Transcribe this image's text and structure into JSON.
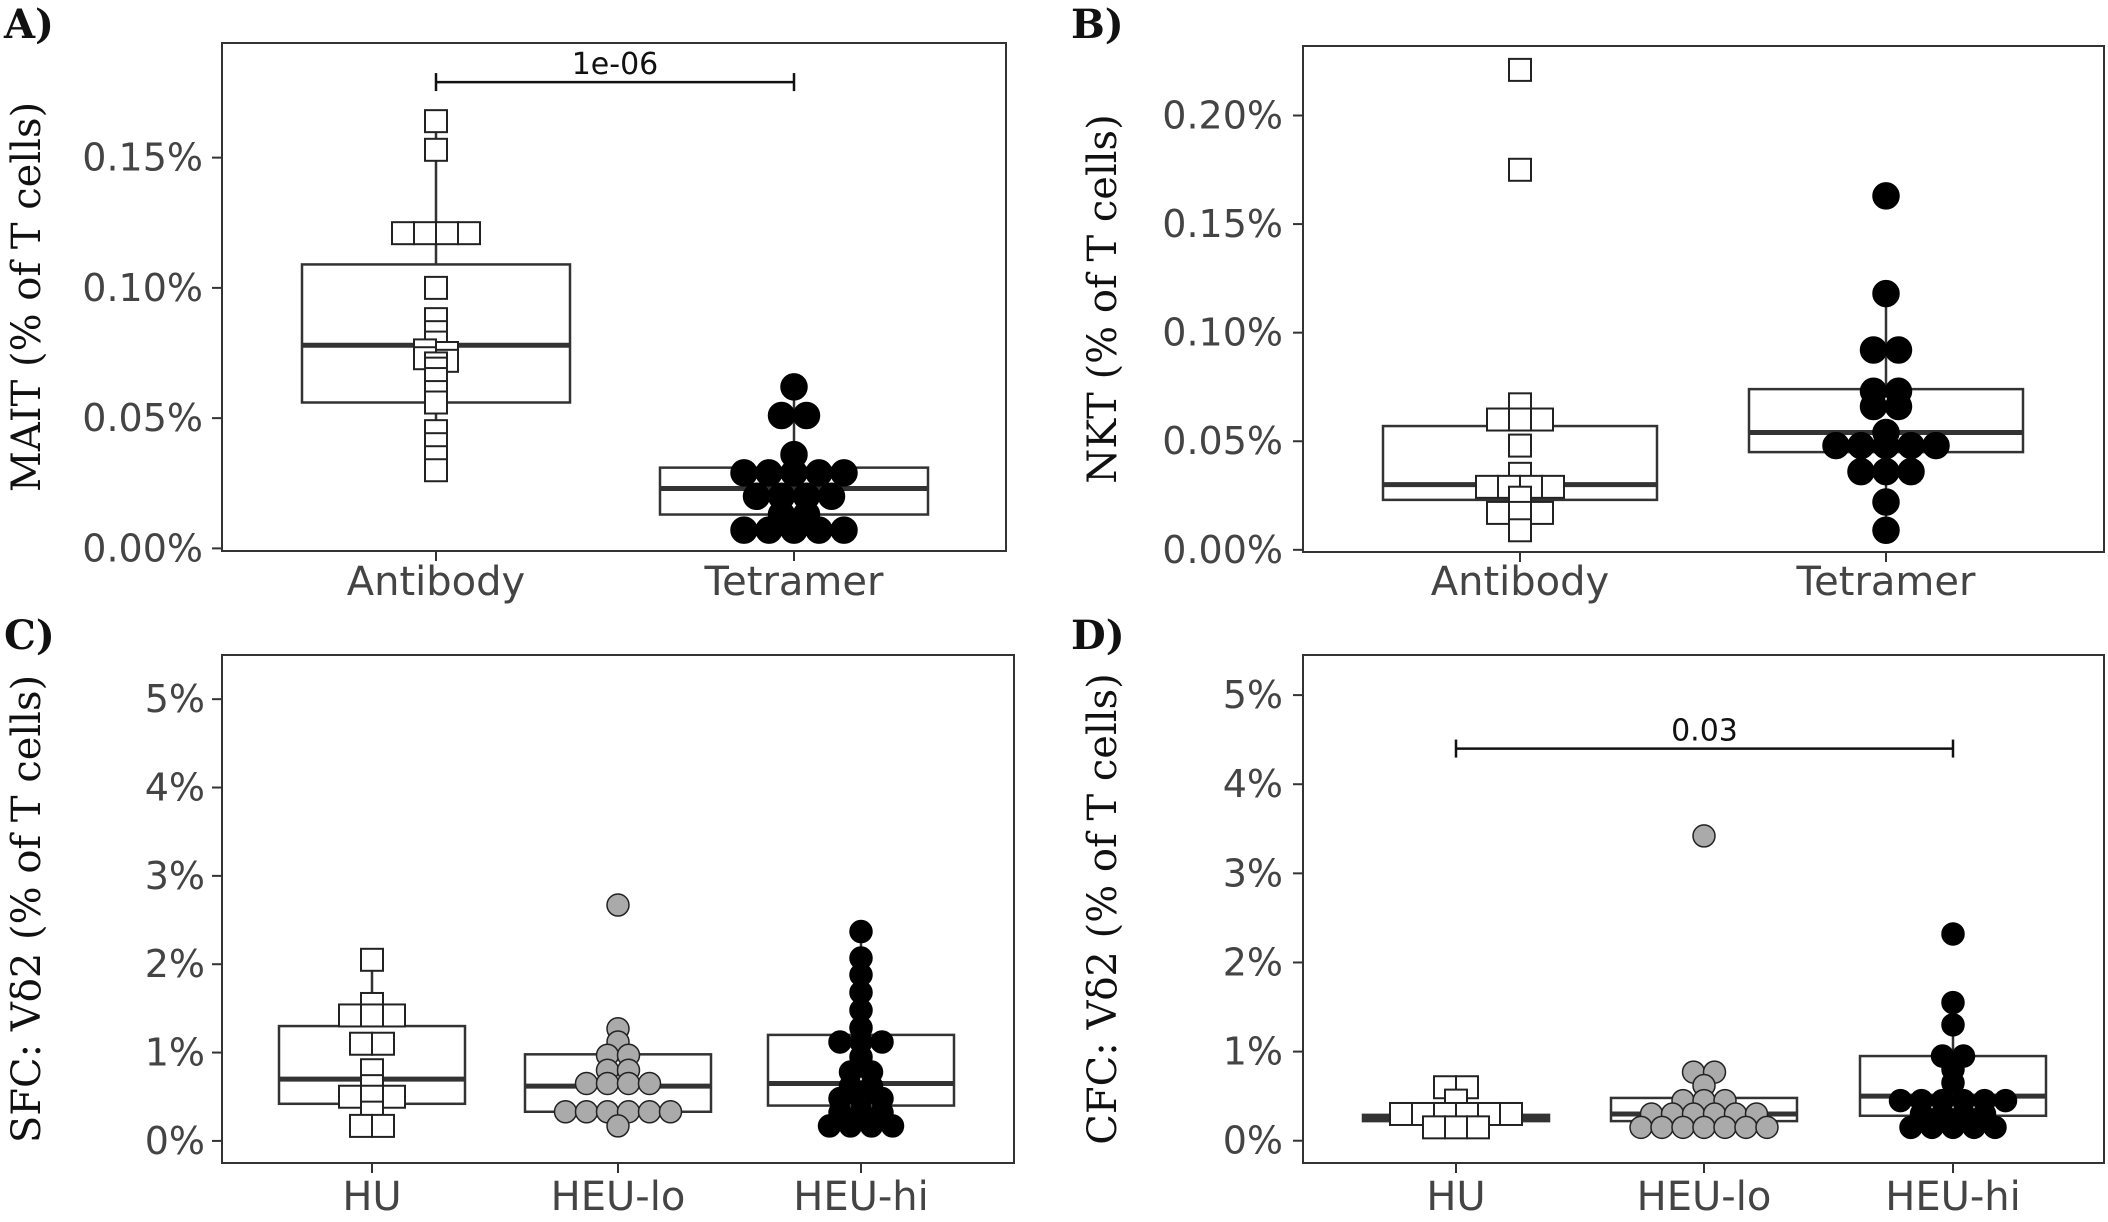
{
  "chart_data": [
    {
      "type": "box",
      "panel": "A)",
      "ylabel": "MAIT (% of T cells)",
      "categories": [
        "Antibody",
        "Tetramer"
      ],
      "yticks": [
        0,
        0.05,
        0.1,
        0.15
      ],
      "ytick_labels": [
        "0.00%",
        "0.05%",
        "0.10%",
        "0.15%"
      ],
      "ylim": [
        -0.001,
        0.194
      ],
      "boxes": [
        {
          "category": "Antibody",
          "q1": 0.056,
          "median": 0.078,
          "q3": 0.109,
          "whisker_low": 0.03,
          "whisker_high": 0.164,
          "marker": "square",
          "fill": "#ffffff",
          "stroke": "#222222"
        },
        {
          "category": "Tetramer",
          "q1": 0.013,
          "median": 0.023,
          "q3": 0.031,
          "whisker_low": 0.007,
          "whisker_high": 0.062,
          "marker": "circle",
          "fill": "#000000",
          "stroke": "#000000"
        }
      ],
      "points": [
        {
          "category": "Antibody",
          "values": [
            0.164,
            0.153,
            0.121,
            0.121,
            0.121,
            0.121,
            0.1,
            0.088,
            0.083,
            0.079,
            0.076,
            0.075,
            0.073,
            0.072,
            0.071,
            0.069,
            0.065,
            0.06,
            0.056,
            0.045,
            0.04,
            0.035,
            0.03
          ]
        },
        {
          "category": "Tetramer",
          "values": [
            0.062,
            0.051,
            0.051,
            0.036,
            0.029,
            0.029,
            0.029,
            0.029,
            0.029,
            0.02,
            0.02,
            0.02,
            0.02,
            0.013,
            0.013,
            0.007,
            0.007,
            0.007,
            0.007,
            0.007
          ]
        }
      ],
      "significance": [
        {
          "from": "Antibody",
          "to": "Tetramer",
          "y": 0.179,
          "label": "1e-06"
        }
      ]
    },
    {
      "type": "box",
      "panel": "B)",
      "ylabel": "NKT (%  of T cells)",
      "categories": [
        "Antibody",
        "Tetramer"
      ],
      "yticks": [
        0,
        0.05,
        0.1,
        0.15,
        0.2
      ],
      "ytick_labels": [
        "0.00%",
        "0.05%",
        "0.10%",
        "0.15%",
        "0.20%"
      ],
      "ylim": [
        -0.001,
        0.232
      ],
      "boxes": [
        {
          "category": "Antibody",
          "q1": 0.023,
          "median": 0.03,
          "q3": 0.057,
          "whisker_low": 0.009,
          "whisker_high": 0.067,
          "marker": "square",
          "fill": "#ffffff",
          "stroke": "#222222"
        },
        {
          "category": "Tetramer",
          "q1": 0.045,
          "median": 0.054,
          "q3": 0.074,
          "whisker_low": 0.009,
          "whisker_high": 0.118,
          "marker": "circle",
          "fill": "#000000",
          "stroke": "#000000"
        }
      ],
      "points": [
        {
          "category": "Antibody",
          "values": [
            0.221,
            0.175,
            0.067,
            0.06,
            0.06,
            0.06,
            0.048,
            0.035,
            0.029,
            0.029,
            0.029,
            0.029,
            0.024,
            0.017,
            0.017,
            0.017,
            0.009
          ]
        },
        {
          "category": "Tetramer",
          "values": [
            0.163,
            0.118,
            0.092,
            0.092,
            0.073,
            0.073,
            0.066,
            0.066,
            0.054,
            0.048,
            0.048,
            0.048,
            0.048,
            0.048,
            0.036,
            0.036,
            0.036,
            0.022,
            0.009
          ]
        }
      ],
      "significance": []
    },
    {
      "type": "box",
      "panel": "C)",
      "ylabel": "SFC: Vδ2  (% of T cells)",
      "categories": [
        "HU",
        "HEU-lo",
        "HEU-hi"
      ],
      "yticks": [
        0,
        1,
        2,
        3,
        4,
        5
      ],
      "ytick_labels": [
        "0%",
        "1%",
        "2%",
        "3%",
        "4%",
        "5%"
      ],
      "ylim": [
        -0.25,
        5.5
      ],
      "boxes": [
        {
          "category": "HU",
          "q1": 0.42,
          "median": 0.7,
          "q3": 1.3,
          "whisker_low": 0.17,
          "whisker_high": 2.05,
          "marker": "square",
          "fill": "#ffffff",
          "stroke": "#222222"
        },
        {
          "category": "HEU-lo",
          "q1": 0.33,
          "median": 0.62,
          "q3": 0.98,
          "whisker_low": 0.17,
          "whisker_high": 1.27,
          "marker": "circle",
          "fill": "#aaaaaa",
          "stroke": "#222222"
        },
        {
          "category": "HEU-hi",
          "q1": 0.4,
          "median": 0.65,
          "q3": 1.2,
          "whisker_low": 0.17,
          "whisker_high": 2.37,
          "marker": "circle",
          "fill": "#000000",
          "stroke": "#000000"
        }
      ],
      "points": [
        {
          "category": "HU",
          "values": [
            2.05,
            1.55,
            1.42,
            1.42,
            1.42,
            1.1,
            1.1,
            0.8,
            0.62,
            0.5,
            0.5,
            0.5,
            0.32,
            0.17,
            0.17
          ]
        },
        {
          "category": "HEU-lo",
          "values": [
            2.67,
            1.27,
            1.12,
            0.97,
            0.97,
            0.8,
            0.8,
            0.65,
            0.65,
            0.65,
            0.65,
            0.33,
            0.33,
            0.33,
            0.33,
            0.33,
            0.33,
            0.17
          ]
        },
        {
          "category": "HEU-hi",
          "values": [
            2.37,
            2.07,
            1.88,
            1.68,
            1.48,
            1.28,
            1.12,
            1.12,
            1.12,
            0.95,
            0.78,
            0.78,
            0.62,
            0.62,
            0.48,
            0.48,
            0.48,
            0.32,
            0.32,
            0.32,
            0.17,
            0.17,
            0.17,
            0.17
          ]
        }
      ],
      "significance": []
    },
    {
      "type": "box",
      "panel": "D)",
      "ylabel": "CFC: Vδ2 (%  of T cells)",
      "categories": [
        "HU",
        "HEU-lo",
        "HEU-hi"
      ],
      "yticks": [
        0,
        1,
        2,
        3,
        4,
        5
      ],
      "ytick_labels": [
        "0%",
        "1%",
        "2%",
        "3%",
        "4%",
        "5%"
      ],
      "ylim": [
        -0.25,
        5.45
      ],
      "boxes": [
        {
          "category": "HU",
          "q1": 0.22,
          "median": 0.26,
          "q3": 0.29,
          "whisker_low": 0.13,
          "whisker_high": 0.6,
          "marker": "square",
          "fill": "#ffffff",
          "stroke": "#222222"
        },
        {
          "category": "HEU-lo",
          "q1": 0.22,
          "median": 0.3,
          "q3": 0.48,
          "whisker_low": 0.13,
          "whisker_high": 0.77,
          "marker": "circle",
          "fill": "#aaaaaa",
          "stroke": "#222222"
        },
        {
          "category": "HEU-hi",
          "q1": 0.28,
          "median": 0.5,
          "q3": 0.95,
          "whisker_low": 0.13,
          "whisker_high": 1.55,
          "marker": "circle",
          "fill": "#000000",
          "stroke": "#000000"
        }
      ],
      "points": [
        {
          "category": "HU",
          "values": [
            0.6,
            0.6,
            0.45,
            0.3,
            0.3,
            0.3,
            0.3,
            0.3,
            0.3,
            0.15,
            0.15,
            0.15
          ]
        },
        {
          "category": "HEU-lo",
          "values": [
            3.42,
            0.77,
            0.77,
            0.62,
            0.45,
            0.45,
            0.45,
            0.3,
            0.3,
            0.3,
            0.3,
            0.3,
            0.3,
            0.15,
            0.15,
            0.15,
            0.15,
            0.15,
            0.15,
            0.15
          ]
        },
        {
          "category": "HEU-hi",
          "values": [
            2.32,
            1.55,
            1.3,
            0.95,
            0.95,
            0.8,
            0.65,
            0.45,
            0.45,
            0.45,
            0.45,
            0.45,
            0.45,
            0.3,
            0.3,
            0.3,
            0.3,
            0.15,
            0.15,
            0.15,
            0.15,
            0.15
          ]
        }
      ],
      "significance": [
        {
          "from": "HU",
          "to": "HEU-hi",
          "y": 4.4,
          "label": "0.03"
        }
      ]
    }
  ]
}
